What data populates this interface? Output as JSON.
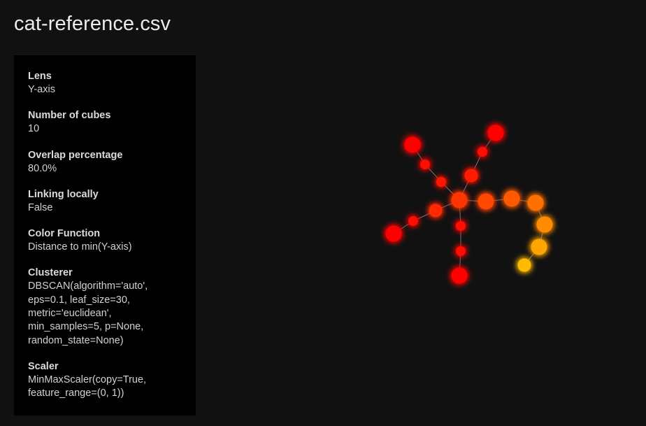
{
  "file_title": "cat-reference.csv",
  "params": [
    {
      "label": "Lens",
      "value": "Y-axis"
    },
    {
      "label": "Number of cubes",
      "value": "10"
    },
    {
      "label": "Overlap percentage",
      "value": "80.0%"
    },
    {
      "label": "Linking locally",
      "value": "False"
    },
    {
      "label": "Color Function",
      "value": "Distance to min(Y-axis)"
    },
    {
      "label": "Clusterer",
      "value": "DBSCAN(algorithm='auto',\neps=0.1, leaf_size=30,\nmetric='euclidean',\nmin_samples=5, p=None,\nrandom_state=None)"
    },
    {
      "label": "Scaler",
      "value": "MinMaxScaler(copy=True,\nfeature_range=(0, 1))"
    }
  ],
  "colors": {
    "background": "#111111",
    "panel": "#000000",
    "edge": "#8a8a8a",
    "scale_low": "#ff0000",
    "scale_high": "#ffbb00"
  },
  "graph": {
    "nodes": [
      {
        "id": "n0",
        "color_value": 0.0,
        "size": "large"
      },
      {
        "id": "n1",
        "color_value": 0.05,
        "size": "small"
      },
      {
        "id": "n2",
        "color_value": 0.22,
        "size": "medium"
      },
      {
        "id": "n3",
        "color_value": 0.0,
        "size": "large"
      },
      {
        "id": "n4",
        "color_value": 0.05,
        "size": "small"
      },
      {
        "id": "n5",
        "color_value": 0.12,
        "size": "small"
      },
      {
        "id": "n6",
        "color_value": 0.28,
        "size": "large"
      },
      {
        "id": "n7",
        "color_value": 0.0,
        "size": "large"
      },
      {
        "id": "n8",
        "color_value": 0.05,
        "size": "small"
      },
      {
        "id": "n9",
        "color_value": 0.15,
        "size": "medium"
      },
      {
        "id": "n10",
        "color_value": 0.08,
        "size": "small"
      },
      {
        "id": "n11",
        "color_value": 0.04,
        "size": "small"
      },
      {
        "id": "n12",
        "color_value": 0.0,
        "size": "large"
      },
      {
        "id": "n13",
        "color_value": 0.38,
        "size": "large"
      },
      {
        "id": "n14",
        "color_value": 0.48,
        "size": "large"
      },
      {
        "id": "n15",
        "color_value": 0.6,
        "size": "large"
      },
      {
        "id": "n16",
        "color_value": 0.75,
        "size": "large"
      },
      {
        "id": "n17",
        "color_value": 0.88,
        "size": "large"
      },
      {
        "id": "n18",
        "color_value": 1.0,
        "size": "medium"
      }
    ],
    "edges": [
      [
        "n0",
        "n1"
      ],
      [
        "n1",
        "n2"
      ],
      [
        "n2",
        "n6"
      ],
      [
        "n3",
        "n4"
      ],
      [
        "n4",
        "n5"
      ],
      [
        "n5",
        "n6"
      ],
      [
        "n7",
        "n8"
      ],
      [
        "n8",
        "n9"
      ],
      [
        "n9",
        "n6"
      ],
      [
        "n6",
        "n10"
      ],
      [
        "n10",
        "n11"
      ],
      [
        "n11",
        "n12"
      ],
      [
        "n6",
        "n13"
      ],
      [
        "n13",
        "n14"
      ],
      [
        "n14",
        "n15"
      ],
      [
        "n15",
        "n16"
      ],
      [
        "n16",
        "n17"
      ],
      [
        "n17",
        "n18"
      ]
    ]
  }
}
